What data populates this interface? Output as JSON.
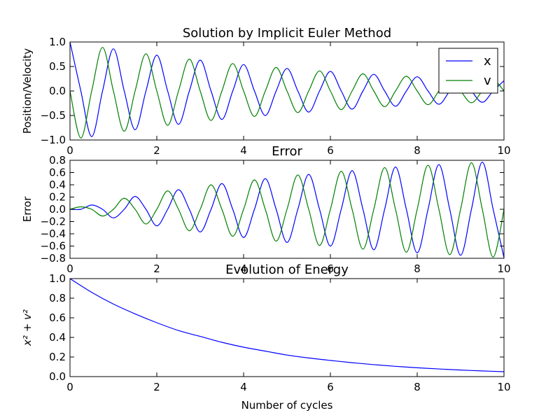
{
  "chart_data": [
    {
      "type": "line",
      "title": "Solution by Implicit Euler Method",
      "xlabel": "",
      "ylabel": "Position/Velocity",
      "xlim": [
        0,
        10
      ],
      "ylim": [
        -1.0,
        1.0
      ],
      "xticks": [
        "0",
        "2",
        "4",
        "6",
        "8",
        "10"
      ],
      "yticks": [
        "1.0",
        "0.5",
        "0.0",
        "−0.5",
        "−1.0"
      ],
      "legend": "top-right",
      "series": [
        {
          "name": "x",
          "color": "#0000ff",
          "x": [
            0,
            0.25,
            0.5,
            0.75,
            1,
            1.25,
            1.5,
            1.75,
            2,
            2.25,
            2.5,
            2.75,
            3,
            3.25,
            3.5,
            3.75,
            4,
            4.25,
            4.5,
            4.75,
            5,
            5.25,
            5.5,
            5.75,
            6,
            6.25,
            6.5,
            6.75,
            7,
            7.25,
            7.5,
            7.75,
            8,
            8.25,
            8.5,
            8.75,
            9,
            9.25,
            9.5,
            9.75,
            10
          ],
          "values": [
            1.0,
            0.0,
            -0.93,
            0.0,
            0.86,
            0.0,
            -0.79,
            0.0,
            0.73,
            0.0,
            -0.68,
            0.0,
            0.63,
            0.0,
            -0.58,
            0.0,
            0.54,
            0.0,
            -0.5,
            0.0,
            0.46,
            0.0,
            -0.43,
            0.0,
            0.4,
            0.0,
            -0.37,
            0.0,
            0.34,
            0.0,
            -0.31,
            0.0,
            0.29,
            0.0,
            -0.27,
            0.0,
            0.25,
            0.0,
            -0.23,
            0.0,
            0.21
          ]
        },
        {
          "name": "v",
          "color": "#008000",
          "x": [
            0,
            0.25,
            0.5,
            0.75,
            1,
            1.25,
            1.5,
            1.75,
            2,
            2.25,
            2.5,
            2.75,
            3,
            3.25,
            3.5,
            3.75,
            4,
            4.25,
            4.5,
            4.75,
            5,
            5.25,
            5.5,
            5.75,
            6,
            6.25,
            6.5,
            6.75,
            7,
            7.25,
            7.5,
            7.75,
            8,
            8.25,
            8.5,
            8.75,
            9,
            9.25,
            9.5,
            9.75,
            10
          ],
          "values": [
            0.0,
            -0.96,
            0.0,
            0.89,
            0.0,
            -0.82,
            0.0,
            0.76,
            0.0,
            -0.7,
            0.0,
            0.65,
            0.0,
            -0.6,
            0.0,
            0.56,
            0.0,
            -0.52,
            0.0,
            0.48,
            0.0,
            -0.44,
            0.0,
            0.41,
            0.0,
            -0.38,
            0.0,
            0.35,
            0.0,
            -0.32,
            0.0,
            0.3,
            0.0,
            -0.28,
            0.0,
            0.26,
            0.0,
            -0.24,
            0.0,
            0.22,
            0.0
          ]
        }
      ]
    },
    {
      "type": "line",
      "title": "Error",
      "xlabel": "",
      "ylabel": "Error",
      "xlim": [
        0,
        10
      ],
      "ylim": [
        -0.8,
        0.8
      ],
      "xticks": [
        "0",
        "2",
        "4",
        "6",
        "8",
        "10"
      ],
      "yticks": [
        "0.8",
        "0.6",
        "0.4",
        "0.2",
        "0.0",
        "−0.2",
        "−0.4",
        "−0.6",
        "−0.8"
      ],
      "series": [
        {
          "color": "#0000ff",
          "x": [
            0,
            0.25,
            0.5,
            0.75,
            1,
            1.25,
            1.5,
            1.75,
            2,
            2.25,
            2.5,
            2.75,
            3,
            3.25,
            3.5,
            3.75,
            4,
            4.25,
            4.5,
            4.75,
            5,
            5.25,
            5.5,
            5.75,
            6,
            6.25,
            6.5,
            6.75,
            7,
            7.25,
            7.5,
            7.75,
            8,
            8.25,
            8.5,
            8.75,
            9,
            9.25,
            9.5,
            9.75,
            10
          ],
          "values": [
            0.0,
            0.0,
            0.07,
            0.0,
            -0.14,
            0.0,
            0.21,
            0.0,
            -0.27,
            0.0,
            0.32,
            0.0,
            -0.37,
            0.0,
            0.42,
            0.0,
            -0.46,
            0.0,
            0.5,
            0.0,
            -0.54,
            0.0,
            0.57,
            0.0,
            -0.6,
            0.0,
            0.63,
            0.0,
            -0.66,
            0.0,
            0.69,
            0.0,
            -0.71,
            0.0,
            0.73,
            0.0,
            -0.75,
            0.0,
            0.77,
            0.0,
            -0.79
          ]
        },
        {
          "color": "#008000",
          "x": [
            0,
            0.25,
            0.5,
            0.75,
            1,
            1.25,
            1.5,
            1.75,
            2,
            2.25,
            2.5,
            2.75,
            3,
            3.25,
            3.5,
            3.75,
            4,
            4.25,
            4.5,
            4.75,
            5,
            5.25,
            5.5,
            5.75,
            6,
            6.25,
            6.5,
            6.75,
            7,
            7.25,
            7.5,
            7.75,
            8,
            8.25,
            8.5,
            8.75,
            9,
            9.25,
            9.5,
            9.75,
            10
          ],
          "values": [
            0.0,
            0.04,
            0.0,
            -0.11,
            0.0,
            0.18,
            0.0,
            -0.24,
            0.0,
            0.3,
            0.0,
            -0.35,
            0.0,
            0.4,
            0.0,
            -0.44,
            0.0,
            0.48,
            0.0,
            -0.52,
            0.0,
            0.56,
            0.0,
            -0.59,
            0.0,
            0.62,
            0.0,
            -0.65,
            0.0,
            0.68,
            0.0,
            -0.7,
            0.0,
            0.72,
            0.0,
            -0.74,
            0.0,
            0.76,
            0.0,
            -0.78,
            0.0
          ]
        }
      ]
    },
    {
      "type": "line",
      "title": "Evolution of Energy",
      "xlabel": "Number of cycles",
      "ylabel": "x² + v²",
      "xlim": [
        0,
        10
      ],
      "ylim": [
        0.0,
        1.0
      ],
      "xticks": [
        "0",
        "2",
        "4",
        "6",
        "8",
        "10"
      ],
      "yticks": [
        "1.0",
        "0.8",
        "0.6",
        "0.4",
        "0.2",
        "0.0"
      ],
      "series": [
        {
          "color": "#0000ff",
          "x": [
            0,
            0.5,
            1,
            1.5,
            2,
            2.5,
            3,
            3.5,
            4,
            4.5,
            5,
            5.5,
            6,
            6.5,
            7,
            7.5,
            8,
            8.5,
            9,
            9.5,
            10
          ],
          "values": [
            1.0,
            0.86,
            0.74,
            0.64,
            0.55,
            0.47,
            0.41,
            0.35,
            0.3,
            0.26,
            0.22,
            0.19,
            0.165,
            0.142,
            0.122,
            0.105,
            0.09,
            0.078,
            0.067,
            0.058,
            0.05
          ]
        }
      ]
    }
  ]
}
